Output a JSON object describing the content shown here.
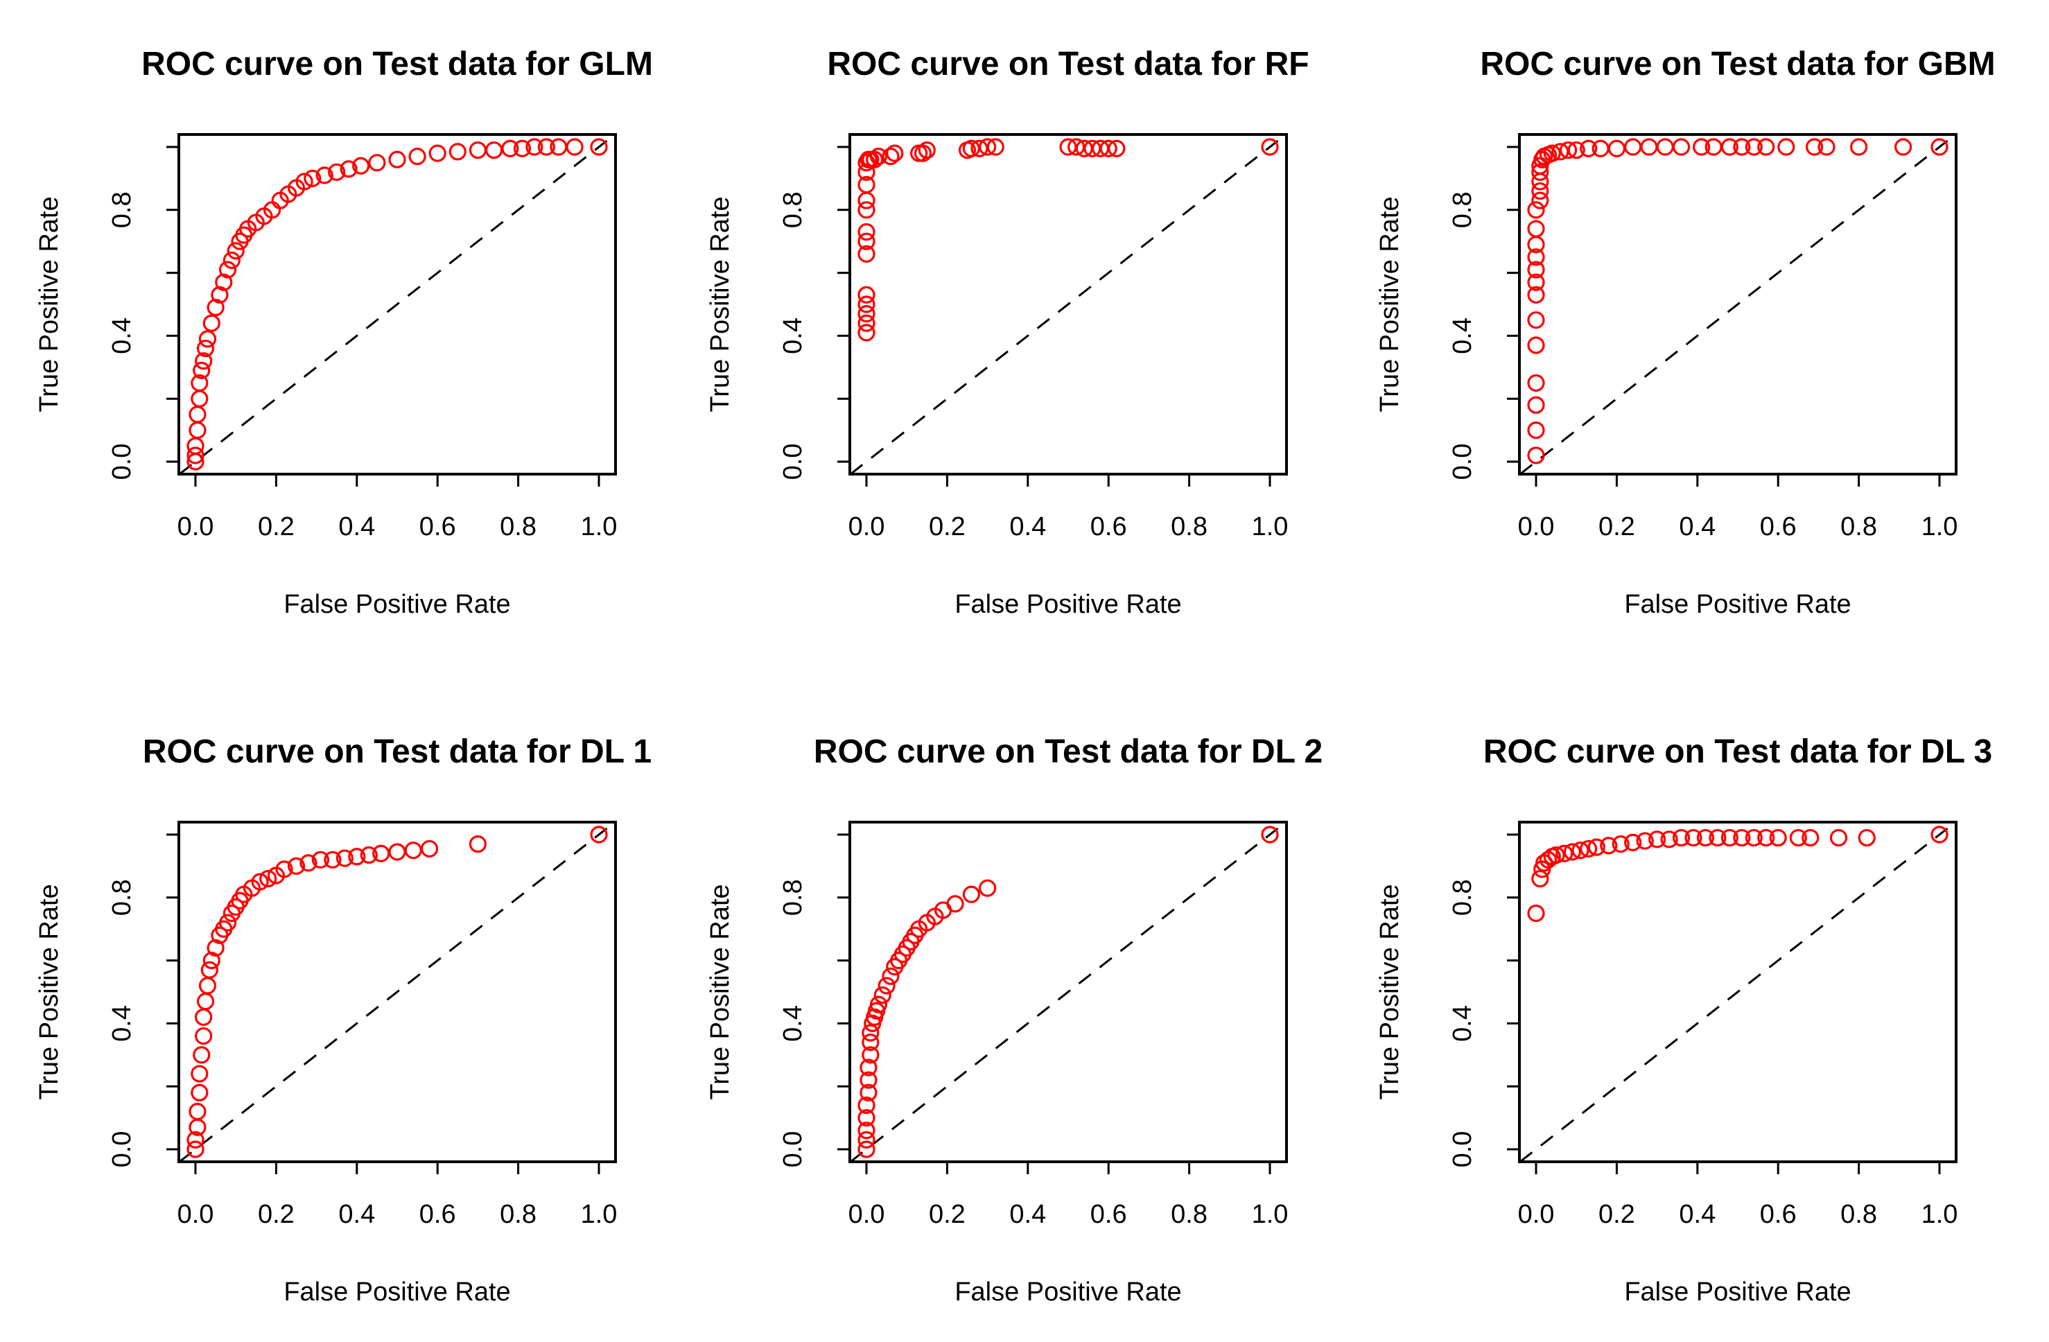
{
  "chart_data": [
    {
      "type": "scatter",
      "title": "ROC curve on Test data for GLM",
      "xlabel": "False Positive Rate",
      "ylabel": "True Positive Rate",
      "xlim": [
        0,
        1
      ],
      "ylim": [
        0,
        1
      ],
      "xticks": [
        "0.0",
        "0.2",
        "0.4",
        "0.6",
        "0.8",
        "1.0"
      ],
      "yticks": [
        "0.0",
        "0.4",
        "0.8"
      ],
      "diagonal": true,
      "series": [
        {
          "name": "ROC",
          "color": "#ff0000",
          "x": [
            0,
            0,
            0,
            0.005,
            0.005,
            0.01,
            0.01,
            0.015,
            0.02,
            0.025,
            0.03,
            0.04,
            0.05,
            0.06,
            0.07,
            0.08,
            0.09,
            0.1,
            0.11,
            0.12,
            0.13,
            0.15,
            0.17,
            0.19,
            0.21,
            0.23,
            0.25,
            0.27,
            0.29,
            0.32,
            0.35,
            0.38,
            0.41,
            0.45,
            0.5,
            0.55,
            0.6,
            0.65,
            0.7,
            0.74,
            0.78,
            0.81,
            0.84,
            0.87,
            0.9,
            0.94,
            1.0
          ],
          "y": [
            0,
            0.02,
            0.05,
            0.1,
            0.15,
            0.2,
            0.25,
            0.29,
            0.32,
            0.36,
            0.39,
            0.44,
            0.49,
            0.53,
            0.57,
            0.61,
            0.64,
            0.67,
            0.7,
            0.72,
            0.74,
            0.76,
            0.78,
            0.8,
            0.83,
            0.85,
            0.87,
            0.89,
            0.9,
            0.91,
            0.92,
            0.93,
            0.94,
            0.95,
            0.96,
            0.97,
            0.98,
            0.985,
            0.99,
            0.99,
            0.995,
            0.995,
            1.0,
            1.0,
            1.0,
            1.0,
            1.0
          ]
        }
      ]
    },
    {
      "type": "scatter",
      "title": "ROC curve on Test data for RF",
      "xlabel": "False Positive Rate",
      "ylabel": "True Positive Rate",
      "xlim": [
        0,
        1
      ],
      "ylim": [
        0,
        1
      ],
      "xticks": [
        "0.0",
        "0.2",
        "0.4",
        "0.6",
        "0.8",
        "1.0"
      ],
      "yticks": [
        "0.0",
        "0.4",
        "0.8"
      ],
      "diagonal": true,
      "series": [
        {
          "name": "ROC",
          "color": "#ff0000",
          "x": [
            0,
            0,
            0,
            0,
            0,
            0,
            0,
            0,
            0,
            0,
            0,
            0,
            0,
            0.005,
            0.01,
            0.02,
            0.03,
            0.06,
            0.07,
            0.13,
            0.14,
            0.15,
            0.25,
            0.26,
            0.28,
            0.3,
            0.32,
            0.5,
            0.52,
            0.54,
            0.56,
            0.58,
            0.6,
            0.62,
            1.0
          ],
          "y": [
            0.41,
            0.44,
            0.47,
            0.5,
            0.53,
            0.66,
            0.7,
            0.73,
            0.8,
            0.83,
            0.88,
            0.92,
            0.95,
            0.96,
            0.96,
            0.96,
            0.97,
            0.97,
            0.98,
            0.98,
            0.98,
            0.99,
            0.99,
            0.995,
            0.995,
            1.0,
            1.0,
            1.0,
            1.0,
            0.995,
            0.995,
            0.995,
            0.995,
            0.995,
            1.0
          ]
        }
      ]
    },
    {
      "type": "scatter",
      "title": "ROC curve on Test data for GBM",
      "xlabel": "False Positive Rate",
      "ylabel": "True Positive Rate",
      "xlim": [
        0,
        1
      ],
      "ylim": [
        0,
        1
      ],
      "xticks": [
        "0.0",
        "0.2",
        "0.4",
        "0.6",
        "0.8",
        "1.0"
      ],
      "yticks": [
        "0.0",
        "0.4",
        "0.8"
      ],
      "diagonal": true,
      "series": [
        {
          "name": "ROC",
          "color": "#ff0000",
          "x": [
            0,
            0,
            0,
            0,
            0,
            0,
            0,
            0,
            0,
            0,
            0,
            0,
            0,
            0.01,
            0.01,
            0.01,
            0.01,
            0.01,
            0.015,
            0.02,
            0.03,
            0.04,
            0.06,
            0.08,
            0.1,
            0.13,
            0.16,
            0.2,
            0.24,
            0.28,
            0.32,
            0.36,
            0.41,
            0.44,
            0.48,
            0.51,
            0.54,
            0.57,
            0.62,
            0.69,
            0.72,
            0.8,
            0.91,
            1.0
          ],
          "y": [
            0.02,
            0.1,
            0.18,
            0.25,
            0.37,
            0.45,
            0.53,
            0.57,
            0.61,
            0.65,
            0.69,
            0.74,
            0.8,
            0.83,
            0.86,
            0.89,
            0.92,
            0.94,
            0.96,
            0.97,
            0.975,
            0.98,
            0.985,
            0.99,
            0.99,
            0.995,
            0.995,
            0.995,
            1.0,
            1.0,
            1.0,
            1.0,
            1.0,
            1.0,
            1.0,
            1.0,
            1.0,
            1.0,
            1.0,
            1.0,
            1.0,
            1.0,
            1.0,
            1.0
          ]
        }
      ]
    },
    {
      "type": "scatter",
      "title": "ROC curve on Test data for DL 1",
      "xlabel": "False Positive Rate",
      "ylabel": "True Positive Rate",
      "xlim": [
        0,
        1
      ],
      "ylim": [
        0,
        1
      ],
      "xticks": [
        "0.0",
        "0.2",
        "0.4",
        "0.6",
        "0.8",
        "1.0"
      ],
      "yticks": [
        "0.0",
        "0.4",
        "0.8"
      ],
      "diagonal": true,
      "series": [
        {
          "name": "ROC",
          "color": "#ff0000",
          "x": [
            0,
            0,
            0.005,
            0.005,
            0.01,
            0.01,
            0.015,
            0.02,
            0.02,
            0.025,
            0.03,
            0.035,
            0.04,
            0.05,
            0.06,
            0.07,
            0.08,
            0.09,
            0.1,
            0.11,
            0.12,
            0.14,
            0.16,
            0.18,
            0.2,
            0.22,
            0.25,
            0.28,
            0.31,
            0.34,
            0.37,
            0.4,
            0.43,
            0.46,
            0.5,
            0.54,
            0.58,
            0.7,
            1.0
          ],
          "y": [
            0,
            0.03,
            0.07,
            0.12,
            0.18,
            0.24,
            0.3,
            0.36,
            0.42,
            0.47,
            0.52,
            0.57,
            0.6,
            0.64,
            0.68,
            0.7,
            0.72,
            0.75,
            0.77,
            0.79,
            0.81,
            0.83,
            0.85,
            0.86,
            0.87,
            0.89,
            0.9,
            0.91,
            0.92,
            0.92,
            0.925,
            0.93,
            0.935,
            0.94,
            0.945,
            0.95,
            0.955,
            0.97,
            1.0
          ]
        }
      ]
    },
    {
      "type": "scatter",
      "title": "ROC curve on Test data for DL 2",
      "xlabel": "False Positive Rate",
      "ylabel": "True Positive Rate",
      "xlim": [
        0,
        1
      ],
      "ylim": [
        0,
        1
      ],
      "xticks": [
        "0.0",
        "0.2",
        "0.4",
        "0.6",
        "0.8",
        "1.0"
      ],
      "yticks": [
        "0.0",
        "0.4",
        "0.8"
      ],
      "diagonal": true,
      "series": [
        {
          "name": "ROC",
          "color": "#ff0000",
          "x": [
            0,
            0,
            0,
            0,
            0,
            0.005,
            0.005,
            0.005,
            0.01,
            0.01,
            0.01,
            0.015,
            0.02,
            0.025,
            0.03,
            0.04,
            0.05,
            0.06,
            0.07,
            0.08,
            0.09,
            0.1,
            0.11,
            0.12,
            0.13,
            0.15,
            0.17,
            0.19,
            0.22,
            0.26,
            0.3,
            1.0
          ],
          "y": [
            0,
            0.03,
            0.06,
            0.1,
            0.14,
            0.18,
            0.22,
            0.26,
            0.3,
            0.34,
            0.37,
            0.4,
            0.42,
            0.44,
            0.46,
            0.49,
            0.52,
            0.55,
            0.58,
            0.6,
            0.62,
            0.64,
            0.66,
            0.68,
            0.7,
            0.72,
            0.74,
            0.76,
            0.78,
            0.81,
            0.83,
            1.0
          ]
        }
      ]
    },
    {
      "type": "scatter",
      "title": "ROC curve on Test data for DL 3",
      "xlabel": "False Positive Rate",
      "ylabel": "True Positive Rate",
      "xlim": [
        0,
        1
      ],
      "ylim": [
        0,
        1
      ],
      "xticks": [
        "0.0",
        "0.2",
        "0.4",
        "0.6",
        "0.8",
        "1.0"
      ],
      "yticks": [
        "0.0",
        "0.4",
        "0.8"
      ],
      "diagonal": true,
      "series": [
        {
          "name": "ROC",
          "color": "#ff0000",
          "x": [
            0,
            0.01,
            0.015,
            0.02,
            0.03,
            0.04,
            0.05,
            0.07,
            0.09,
            0.11,
            0.13,
            0.15,
            0.18,
            0.21,
            0.24,
            0.27,
            0.3,
            0.33,
            0.36,
            0.39,
            0.42,
            0.45,
            0.48,
            0.51,
            0.54,
            0.57,
            0.6,
            0.65,
            0.68,
            0.75,
            0.82,
            1.0
          ],
          "y": [
            0.75,
            0.86,
            0.89,
            0.91,
            0.92,
            0.93,
            0.935,
            0.94,
            0.945,
            0.95,
            0.955,
            0.96,
            0.965,
            0.97,
            0.975,
            0.98,
            0.985,
            0.985,
            0.99,
            0.99,
            0.99,
            0.99,
            0.99,
            0.99,
            0.99,
            0.99,
            0.99,
            0.99,
            0.99,
            0.99,
            0.99,
            1.0
          ]
        }
      ]
    }
  ]
}
